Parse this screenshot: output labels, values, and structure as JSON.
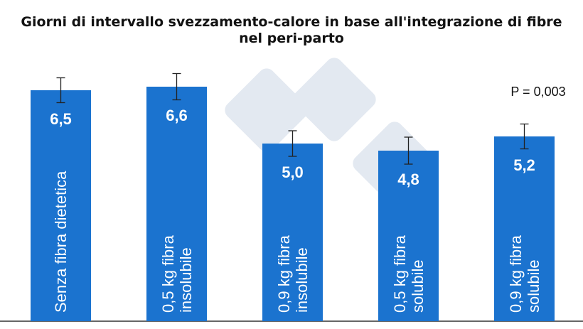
{
  "chart_data": {
    "type": "bar",
    "title": "Giorni di intervallo svezzamento-calore in base all'integrazione di fibre nel peri-parto",
    "categories": [
      "Senza fibra dietetica",
      "0,5 kg fibra insolubile",
      "0,9 kg fibra insolubile",
      "0,5 kg fibra solubile",
      "0,9 kg fibra solubile"
    ],
    "values": [
      6.5,
      6.6,
      5.0,
      4.8,
      5.2
    ],
    "value_labels": [
      "6,5",
      "6,6",
      "5,0",
      "4,8",
      "5,2"
    ],
    "errors": [
      0.35,
      0.37,
      0.36,
      0.38,
      0.35
    ],
    "color": "#1b73cf",
    "ylim": [
      0,
      7
    ],
    "annotation": "P = 0,003"
  }
}
